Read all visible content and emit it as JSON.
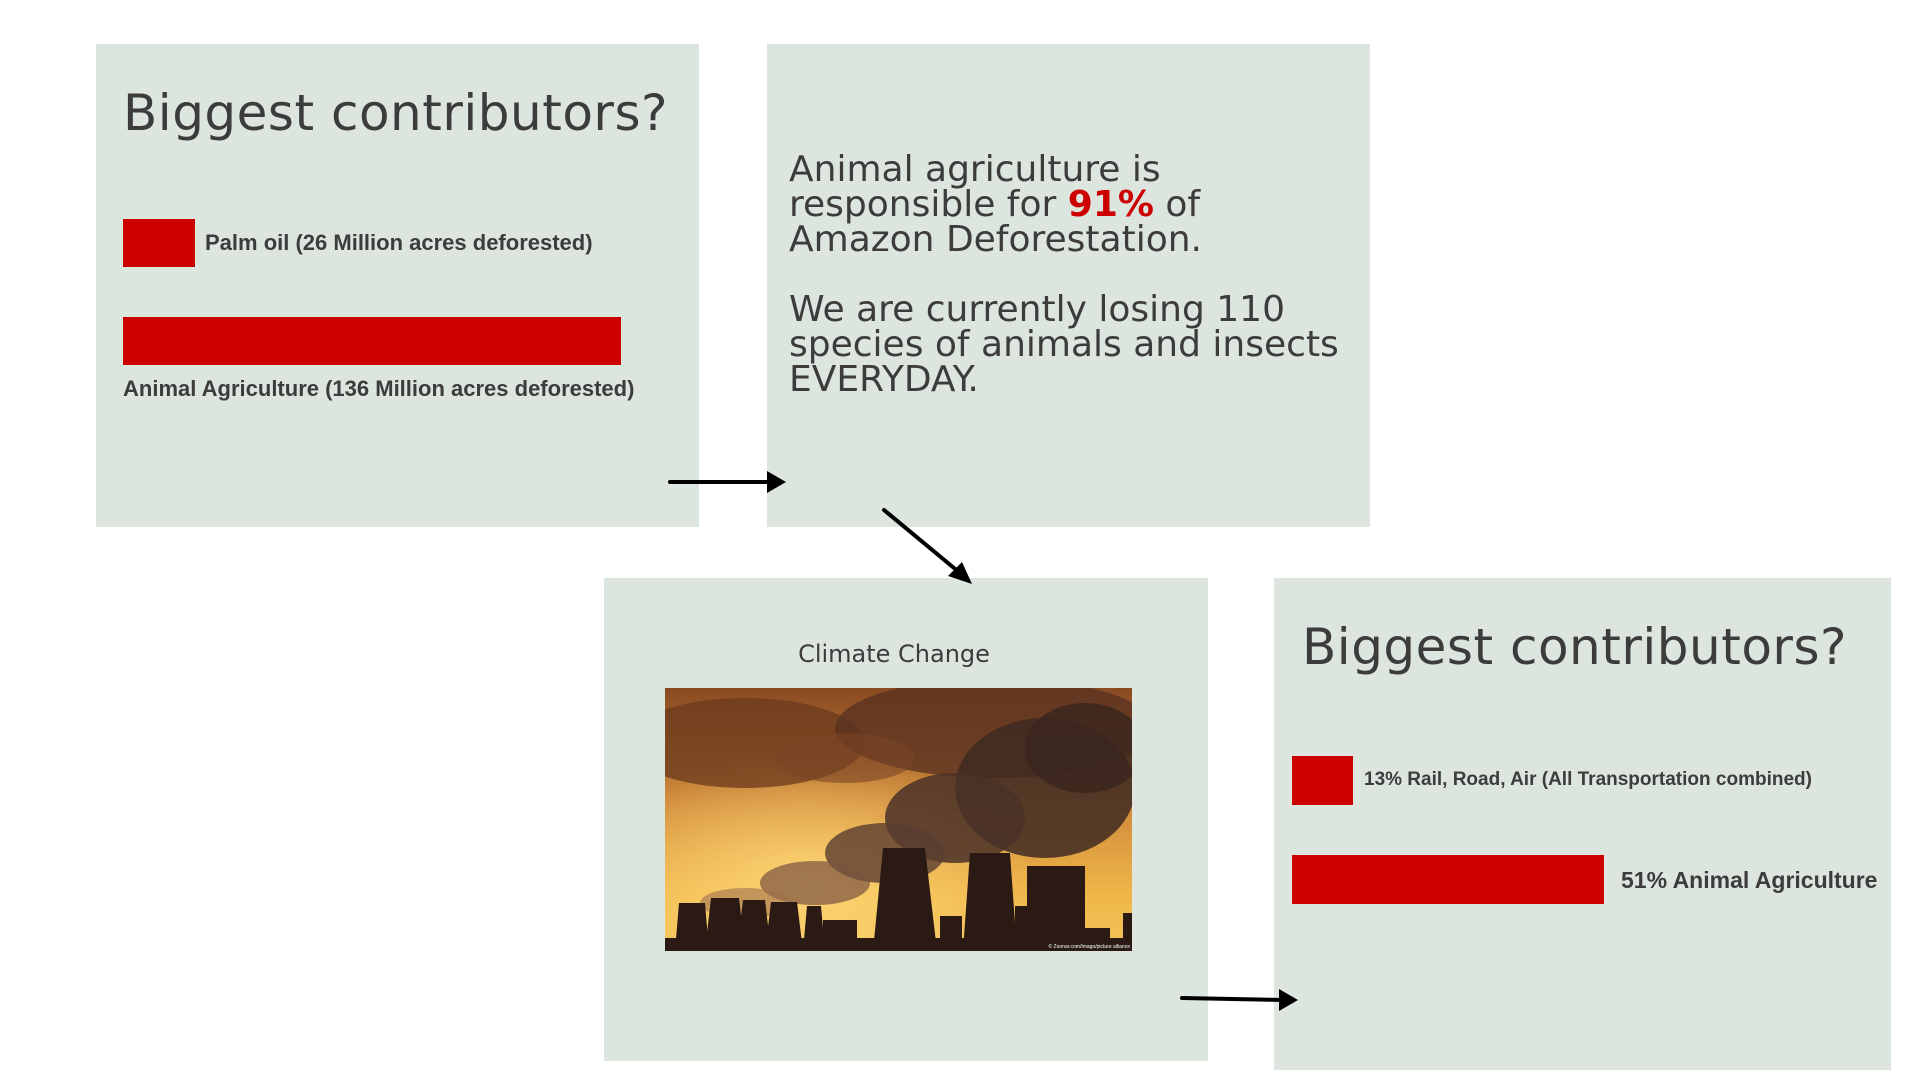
{
  "card1": {
    "heading": "Biggest contributors?",
    "bars": [
      {
        "label": "Palm oil  (26 Million acres deforested)",
        "value": 26
      },
      {
        "label": "Animal Agriculture  (136 Million acres deforested)",
        "value": 136
      }
    ]
  },
  "card2": {
    "line1_pre": "Animal agriculture is responsible for ",
    "line1_highlight": "91%",
    "line1_post": " of Amazon Deforestation.",
    "line2": "We are currently losing 110 species of animals and insects EVERYDAY."
  },
  "card3": {
    "title": "Climate Change",
    "photo_credit": "© Zoonar.com/Imago/picture alliance"
  },
  "card4": {
    "heading": "Biggest contributors?",
    "bars": [
      {
        "label": "13%   Rail, Road, Air  (All Transportation combined)",
        "value": 13
      },
      {
        "label": "51% Animal Agriculture",
        "value": 51
      }
    ]
  },
  "colors": {
    "card_bg": "#dce6df",
    "accent": "#cc0000",
    "text": "#3c3c3c"
  },
  "icons": [
    "arrow-right-icon",
    "arrow-down-right-icon",
    "arrow-right-icon"
  ]
}
